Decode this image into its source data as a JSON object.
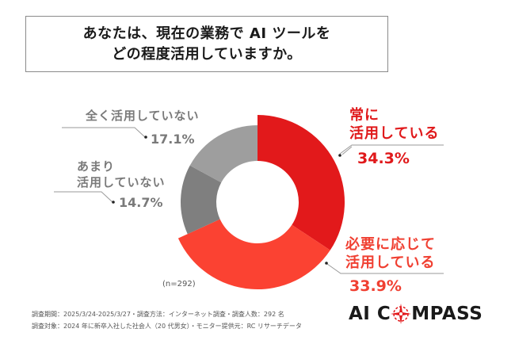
{
  "title": {
    "line1": "あなたは、現在の業務で AI ツールを",
    "line2": "どの程度活用していますか。"
  },
  "chart_data": {
    "type": "pie",
    "subtype": "donut",
    "title": "あなたは、現在の業務で AI ツールを どの程度活用していますか。",
    "sample_size": "(n=292)",
    "categories": [
      "常に活用している",
      "必要に応じて活用している",
      "あまり活用していない",
      "全く活用していない"
    ],
    "values": [
      34.3,
      33.9,
      14.7,
      17.1
    ],
    "unit": "%",
    "colors": [
      "#e2191b",
      "#fb4232",
      "#7f7f7f",
      "#9e9e9e"
    ],
    "start_angle": "12 o'clock, clockwise",
    "exploded": [
      "常に活用している",
      "必要に応じて活用している"
    ]
  },
  "labels": {
    "always": {
      "line1": "常に",
      "line2": "活用している",
      "pct": "34.3%"
    },
    "as_needed": {
      "line1": "必要に応じて",
      "line2": "活用している",
      "pct": "33.9%"
    },
    "rarely": {
      "line1": "あまり",
      "line2": "活用していない",
      "pct": "14.7%"
    },
    "never": {
      "line1": "全く活用していない",
      "pct": "17.1%"
    }
  },
  "n_label": "(n=292)",
  "footer": {
    "line1": "調査期間：2025/3/24-2025/3/27・調査方法：インターネット調査・調査人数：292 名",
    "line2": "調査対象：2024 年に新卒入社した社会人（20 代男女）・モニター提供元：RC リサーチデータ"
  },
  "logo": {
    "text_left": "AI C",
    "text_right": "MPASS",
    "accent": "#e2191b"
  }
}
